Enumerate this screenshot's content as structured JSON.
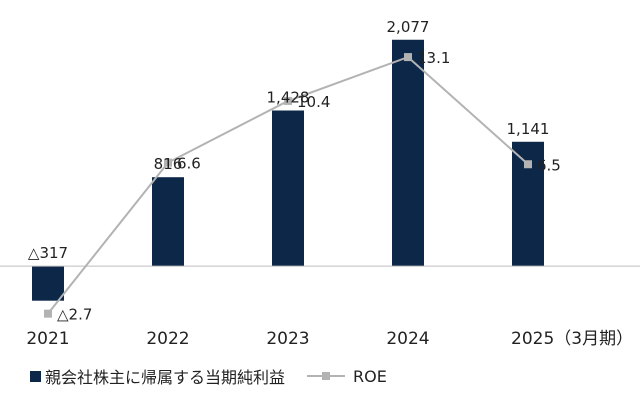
{
  "chart_data": {
    "type": "bar",
    "categories": [
      "2021",
      "2022",
      "2023",
      "2024",
      "2025（3月期）"
    ],
    "series": [
      {
        "name": "親会社株主に帰属する当期純利益",
        "type": "bar",
        "values": [
          -317,
          816,
          1428,
          2077,
          1141
        ],
        "labels": [
          "△317",
          "816",
          "1,428",
          "2,077",
          "1,141"
        ],
        "color": "#0d2748"
      },
      {
        "name": "ROE",
        "type": "line",
        "values": [
          -2.7,
          6.6,
          10.4,
          13.1,
          6.5
        ],
        "labels": [
          "△2.7",
          "6.6",
          "10.4",
          "13.1",
          "6.5"
        ],
        "color": "#b3b3b3"
      }
    ],
    "bar_axis_range": [
      -540,
      2350
    ],
    "line_axis_range": [
      -3.4,
      16.0
    ],
    "grid": false,
    "zero_line": true,
    "legend_position": "bottom-left"
  },
  "legend": {
    "items": [
      {
        "label": "親会社株主に帰属する当期純利益",
        "color": "#0d2748"
      },
      {
        "label": "ROE",
        "color": "#b3b3b3"
      }
    ]
  }
}
